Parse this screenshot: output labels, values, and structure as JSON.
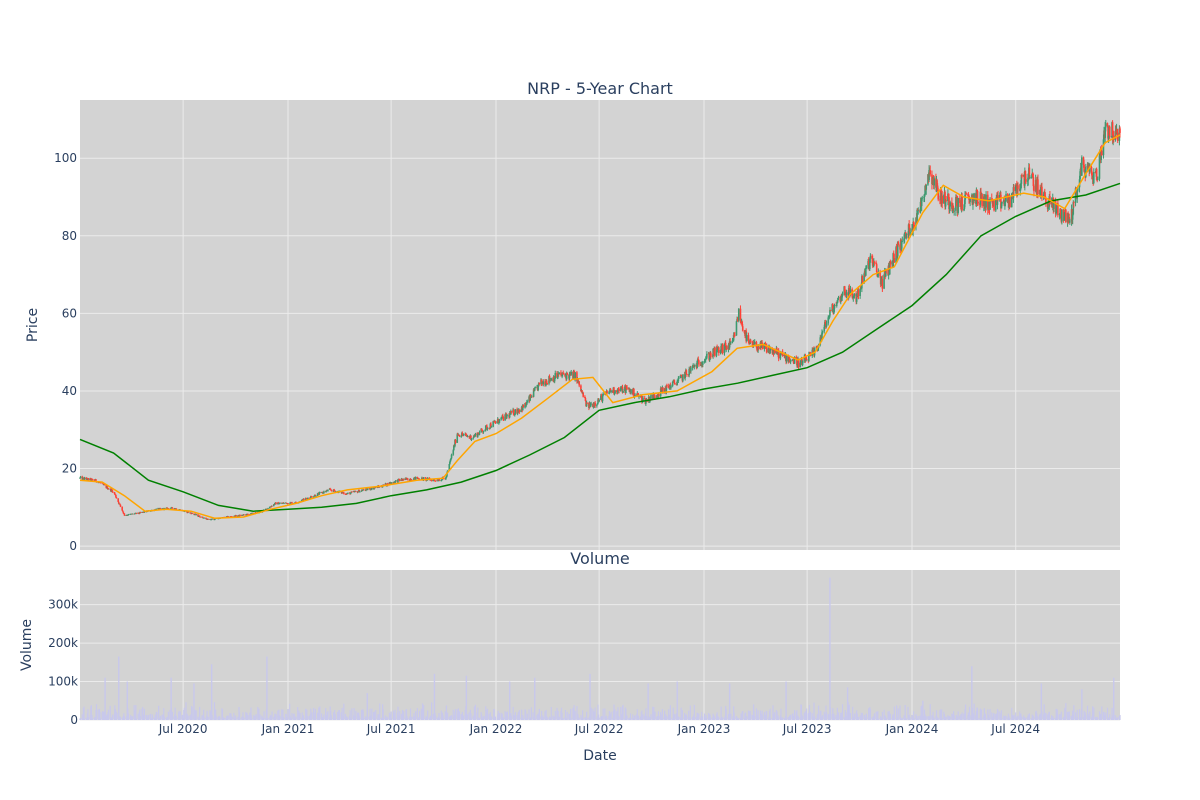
{
  "colors": {
    "panel_bg": "#d3d3d3",
    "grid": "#ebebeb",
    "text": "#2a3f5f",
    "candle_up": "#3d9970",
    "candle_down": "#ff4136",
    "ma_short": "#ffa500",
    "ma_long": "#008000",
    "volume_bar": "#c8c8ec"
  },
  "chart_data": [
    {
      "type": "line",
      "subtype": "candlestick",
      "title": "NRP - 5-Year Chart",
      "xlabel": "",
      "ylabel": "Price",
      "ylim": [
        -1,
        115
      ],
      "xlim": [
        "2020-01-02",
        "2024-12-31"
      ],
      "yticks": [
        0,
        20,
        40,
        60,
        80,
        100
      ],
      "grid": true,
      "legend": "none",
      "series": [
        {
          "kind": "candlestick-close",
          "x": [
            "2020-01-02",
            "2020-02-01",
            "2020-03-01",
            "2020-03-20",
            "2020-04-15",
            "2020-05-15",
            "2020-06-15",
            "2020-07-15",
            "2020-08-15",
            "2020-09-15",
            "2020-10-15",
            "2020-11-15",
            "2020-12-10",
            "2021-01-15",
            "2021-02-15",
            "2021-03-15",
            "2021-04-15",
            "2021-05-15",
            "2021-06-15",
            "2021-07-15",
            "2021-08-15",
            "2021-09-15",
            "2021-10-05",
            "2021-10-25",
            "2021-11-20",
            "2021-12-20",
            "2022-01-20",
            "2022-02-20",
            "2022-03-20",
            "2022-04-20",
            "2022-05-20",
            "2022-06-10",
            "2022-06-25",
            "2022-07-20",
            "2022-08-20",
            "2022-09-20",
            "2022-10-20",
            "2022-11-20",
            "2022-12-20",
            "2023-01-20",
            "2023-02-20",
            "2023-03-03",
            "2023-03-20",
            "2023-04-20",
            "2023-05-20",
            "2023-06-20",
            "2023-07-15",
            "2023-08-10",
            "2023-09-05",
            "2023-09-25",
            "2023-10-20",
            "2023-11-10",
            "2023-12-05",
            "2024-01-10",
            "2024-02-01",
            "2024-02-20",
            "2024-03-20",
            "2024-04-20",
            "2024-05-20",
            "2024-06-20",
            "2024-07-20",
            "2024-08-20",
            "2024-09-15",
            "2024-10-05",
            "2024-10-25",
            "2024-11-20",
            "2024-12-05",
            "2024-12-31"
          ],
          "values": [
            17.5,
            16.8,
            14,
            8,
            8.5,
            9.5,
            9.8,
            8.5,
            6.8,
            7.5,
            8,
            8.8,
            11,
            11.2,
            13,
            14.5,
            13.5,
            14.5,
            15.5,
            17,
            17.5,
            17,
            17.5,
            29,
            28,
            31,
            33.5,
            36,
            42,
            44,
            44,
            36,
            37,
            40,
            40.5,
            37.5,
            40,
            43,
            47,
            50,
            52,
            60,
            52,
            51,
            49,
            47,
            50,
            60,
            66,
            64,
            74,
            68,
            76,
            85,
            97,
            90,
            88,
            90,
            88,
            89,
            96,
            90,
            86,
            84,
            98,
            95,
            108,
            105
          ]
        },
        {
          "kind": "moving-average-short",
          "x": [
            "2020-01-02",
            "2020-02-10",
            "2020-03-20",
            "2020-04-25",
            "2020-06-01",
            "2020-07-15",
            "2020-08-25",
            "2020-10-15",
            "2020-12-01",
            "2021-01-15",
            "2021-03-01",
            "2021-04-15",
            "2021-06-15",
            "2021-08-15",
            "2021-09-30",
            "2021-10-25",
            "2021-11-25",
            "2022-01-01",
            "2022-02-15",
            "2022-04-01",
            "2022-05-15",
            "2022-06-20",
            "2022-07-25",
            "2022-09-15",
            "2022-11-15",
            "2023-01-15",
            "2023-02-28",
            "2023-04-15",
            "2023-06-15",
            "2023-07-15",
            "2023-08-15",
            "2023-09-15",
            "2023-10-25",
            "2023-12-01",
            "2024-01-20",
            "2024-02-25",
            "2024-04-01",
            "2024-05-15",
            "2024-07-15",
            "2024-08-20",
            "2024-09-25",
            "2024-11-01",
            "2024-12-05",
            "2024-12-31"
          ],
          "values": [
            17,
            16.5,
            13,
            9,
            9.5,
            9,
            7.2,
            7.5,
            9.5,
            11,
            13,
            14.5,
            15.5,
            17,
            17.5,
            22,
            27,
            29,
            33,
            38,
            43,
            43.5,
            37,
            39,
            40,
            45,
            51,
            52,
            48,
            50,
            58,
            65,
            70,
            72,
            86,
            93,
            90,
            89,
            91,
            90,
            87,
            96,
            104,
            106
          ]
        },
        {
          "kind": "moving-average-long",
          "x": [
            "2020-01-02",
            "2020-03-01",
            "2020-05-01",
            "2020-07-01",
            "2020-09-01",
            "2020-11-01",
            "2021-01-01",
            "2021-03-01",
            "2021-05-01",
            "2021-07-01",
            "2021-09-01",
            "2021-11-01",
            "2022-01-01",
            "2022-03-01",
            "2022-05-01",
            "2022-07-01",
            "2022-09-01",
            "2022-11-01",
            "2023-01-01",
            "2023-03-01",
            "2023-05-01",
            "2023-07-01",
            "2023-09-01",
            "2023-11-01",
            "2024-01-01",
            "2024-03-01",
            "2024-05-01",
            "2024-07-01",
            "2024-09-01",
            "2024-11-01",
            "2024-12-31"
          ],
          "values": [
            27.5,
            24,
            17,
            14,
            10.5,
            9,
            9.5,
            10,
            11,
            13,
            14.5,
            16.5,
            19.5,
            23.5,
            28,
            35,
            37,
            38.5,
            40.5,
            42,
            44,
            46,
            50,
            56,
            62,
            70,
            80,
            85,
            89,
            90.5,
            93.5
          ]
        }
      ]
    },
    {
      "type": "bar",
      "title": "Volume",
      "xlabel": "Date",
      "ylabel": "Volume",
      "ylim": [
        0,
        390000
      ],
      "xlim": [
        "2020-01-02",
        "2024-12-31"
      ],
      "yticks": [
        0,
        100000,
        200000,
        300000
      ],
      "ytick_labels": [
        "0",
        "100k",
        "200k",
        "300k"
      ],
      "xticks": [
        "2020-07-01",
        "2021-01-01",
        "2021-07-01",
        "2022-01-01",
        "2022-07-01",
        "2023-01-01",
        "2023-07-01",
        "2024-01-01",
        "2024-07-01"
      ],
      "xtick_labels": [
        "Jul 2020",
        "Jan 2021",
        "Jul 2021",
        "Jan 2022",
        "Jul 2022",
        "Jan 2023",
        "Jul 2023",
        "Jan 2024",
        "Jul 2024"
      ],
      "grid": true,
      "legend": "none",
      "series": [
        {
          "x": [
            "2020-02-15",
            "2020-03-10",
            "2020-03-25",
            "2020-04-20",
            "2020-06-10",
            "2020-07-20",
            "2020-08-20",
            "2020-11-25",
            "2021-05-20",
            "2021-09-15",
            "2021-11-10",
            "2022-01-25",
            "2022-03-10",
            "2022-06-15",
            "2022-09-25",
            "2022-11-15",
            "2023-02-15",
            "2023-05-25",
            "2023-08-10",
            "2023-09-10",
            "2024-01-20",
            "2024-04-15",
            "2024-08-15",
            "2024-10-25",
            "2024-12-20"
          ],
          "values": [
            110000,
            165000,
            100000,
            30000,
            110000,
            95000,
            145000,
            165000,
            70000,
            120000,
            115000,
            100000,
            110000,
            120000,
            95000,
            100000,
            95000,
            100000,
            370000,
            85000,
            50000,
            140000,
            95000,
            80000,
            110000
          ]
        }
      ]
    }
  ]
}
